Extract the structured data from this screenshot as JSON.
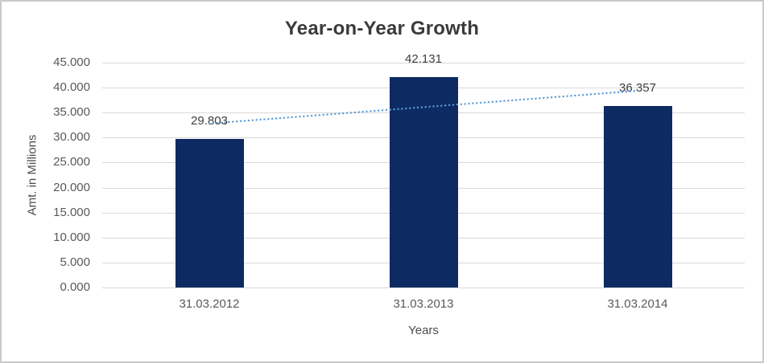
{
  "window": {
    "background": "#ffffff",
    "border_color": "#c9cacb"
  },
  "chart_data": {
    "type": "bar",
    "title": "Year-on-Year Growth",
    "categories": [
      "31.03.2012",
      "31.03.2013",
      "31.03.2014"
    ],
    "values": [
      29.803,
      42.131,
      36.357
    ],
    "data_labels": [
      "29.803",
      "42.131",
      "36.357"
    ],
    "xlabel": "Years",
    "ylabel": "Amt. in Millions",
    "ylim": [
      0,
      45
    ],
    "ytick_step": 5,
    "ytick_labels": [
      "0.000",
      "5.000",
      "10.000",
      "15.000",
      "20.000",
      "25.000",
      "30.000",
      "35.000",
      "40.000",
      "45.000"
    ],
    "grid": true,
    "legend": "none",
    "trendline": {
      "type": "linear",
      "style": "dotted",
      "start_value": 32.82,
      "end_value": 39.37
    }
  },
  "style": {
    "bar_color": "#0d2a63",
    "trendline_color": "#5b9bd5",
    "gridline_color": "#d9d9d9",
    "tick_label_color": "#595959",
    "data_label_color": "#404040",
    "title_color": "#3a3a3a",
    "axis_title_color": "#4d4d4d",
    "frame_border": "#c9cacb"
  }
}
